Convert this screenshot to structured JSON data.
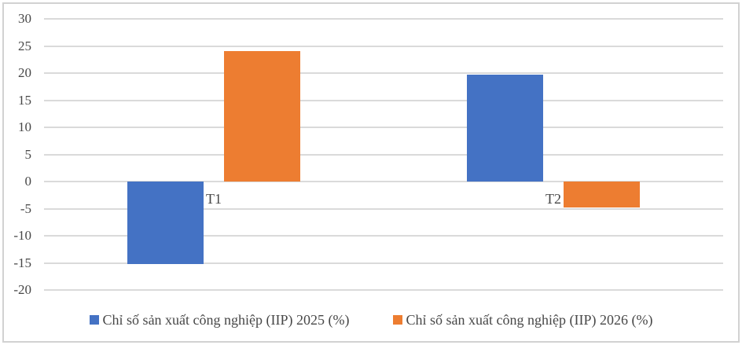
{
  "chart_data": {
    "type": "bar",
    "title": "",
    "categories": [
      "T1",
      "T2"
    ],
    "series": [
      {
        "name": "Chỉ số sản xuất công nghiệp (IIP) 2025 (%)",
        "color": "#4472C4",
        "values": [
          -15.2,
          19.7
        ]
      },
      {
        "name": "Chỉ số sản xuất công nghiệp (IIP) 2026 (%)",
        "color": "#ED7D31",
        "values": [
          24.1,
          -4.8
        ]
      }
    ],
    "y_axis": {
      "min": -20,
      "max": 30,
      "step": 5,
      "tick_labels": [
        "30",
        "25",
        "20",
        "15",
        "10",
        "5",
        "0",
        "-5",
        "-10",
        "-15",
        "-20"
      ]
    },
    "grid": true,
    "legend_position": "bottom",
    "colors": {
      "gridline": "#DADADA",
      "text": "#474747",
      "frame_border": "#D2D2D2",
      "background": "#FFFFFF"
    }
  }
}
